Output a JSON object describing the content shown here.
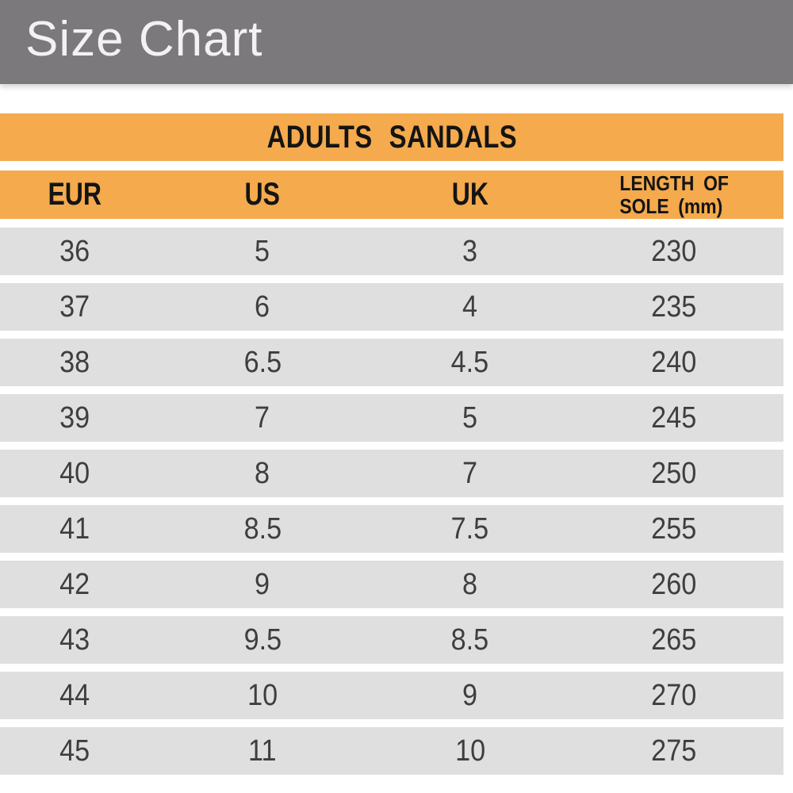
{
  "banner": {
    "title": "Size Chart"
  },
  "colors": {
    "banner_bg": "#7b797b",
    "banner_text": "#f3f1f3",
    "accent_orange": "#f4aa4d",
    "row_bg": "#e0dfe0",
    "header_text": "#141414",
    "cell_text": "#3e3e3e"
  },
  "chart_data": {
    "type": "table",
    "title": "ADULTS SANDALS",
    "columns": [
      "EUR",
      "US",
      "UK",
      "LENGTH OF SOLE (mm)"
    ],
    "column4_lines": [
      "LENGTH OF",
      "SOLE (mm)"
    ],
    "rows": [
      [
        "36",
        "5",
        "3",
        "230"
      ],
      [
        "37",
        "6",
        "4",
        "235"
      ],
      [
        "38",
        "6.5",
        "4.5",
        "240"
      ],
      [
        "39",
        "7",
        "5",
        "245"
      ],
      [
        "40",
        "8",
        "7",
        "250"
      ],
      [
        "41",
        "8.5",
        "7.5",
        "255"
      ],
      [
        "42",
        "9",
        "8",
        "260"
      ],
      [
        "43",
        "9.5",
        "8.5",
        "265"
      ],
      [
        "44",
        "10",
        "9",
        "270"
      ],
      [
        "45",
        "11",
        "10",
        "275"
      ]
    ]
  }
}
